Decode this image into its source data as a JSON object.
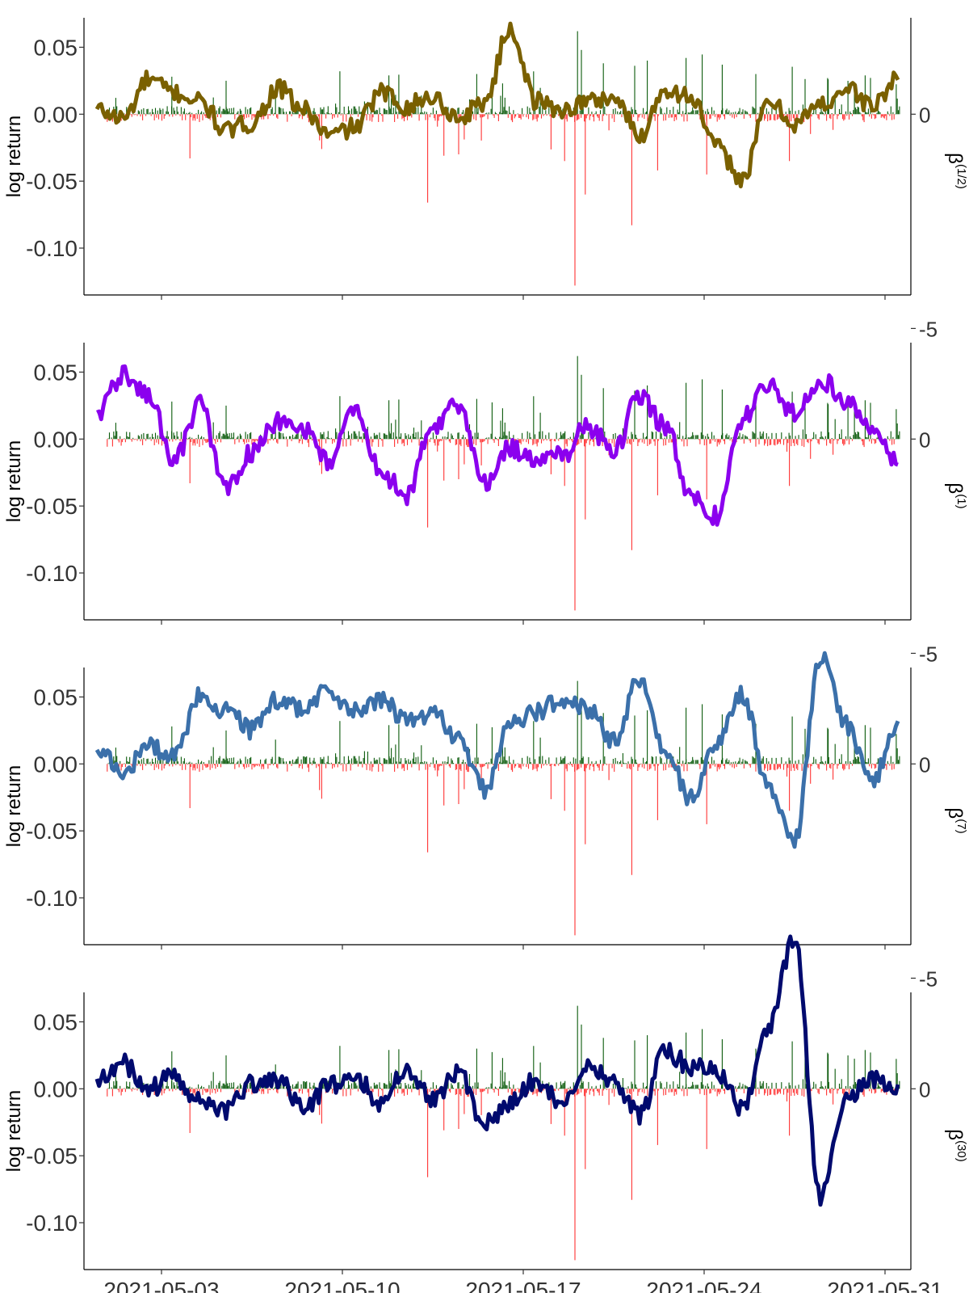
{
  "figure": {
    "left_axis_label": "log return",
    "x_ticks": [
      "2021-05-03",
      "2021-05-10",
      "2021-05-17",
      "2021-05-24",
      "2021-05-31"
    ]
  },
  "chart_data": [
    {
      "type": "bar+line",
      "title": "",
      "xlabel": "",
      "ylabel": "log return",
      "y2label": "β(1/2)",
      "x_range": [
        "2021-04-30",
        "2021-06-01"
      ],
      "ylim": [
        -0.135,
        0.072
      ],
      "y2lim": [
        -8.8,
        4.5
      ],
      "y_ticks": [
        "0.05",
        "0.00",
        "-0.05",
        "-0.10"
      ],
      "y2_ticks": [
        "0",
        "-5"
      ],
      "grid": false,
      "line_color": "#7a6000",
      "up_color": "#0a5a0a",
      "down_color": "#ff3333",
      "series": [
        {
          "name": "β(1/2)",
          "x": [
            "2021-04-30T12:00",
            "2021-05-01T12:00",
            "2021-05-02T12:00",
            "2021-05-03T12:00",
            "2021-05-04T12:00",
            "2021-05-05T12:00",
            "2021-05-06T12:00",
            "2021-05-07T12:00",
            "2021-05-08T12:00",
            "2021-05-09T12:00",
            "2021-05-10T12:00",
            "2021-05-11T12:00",
            "2021-05-12T12:00",
            "2021-05-13T12:00",
            "2021-05-14T12:00",
            "2021-05-15T12:00",
            "2021-05-16T12:00",
            "2021-05-17T12:00",
            "2021-05-18T12:00",
            "2021-05-19T12:00",
            "2021-05-20T12:00",
            "2021-05-21T12:00",
            "2021-05-22T12:00",
            "2021-05-23T12:00",
            "2021-05-24T12:00",
            "2021-05-25T12:00",
            "2021-05-26T12:00",
            "2021-05-27T12:00",
            "2021-05-28T12:00",
            "2021-05-29T12:00",
            "2021-05-30T12:00",
            "2021-05-31T12:00"
          ],
          "values": [
            0.1,
            -0.1,
            0.8,
            0.5,
            0.3,
            -0.4,
            -0.2,
            0.6,
            0.1,
            -0.5,
            -0.3,
            0.5,
            0.2,
            0.4,
            -0.1,
            0.3,
            2.0,
            0.3,
            0.1,
            0.3,
            0.4,
            -0.5,
            0.6,
            0.4,
            -0.8,
            -1.5,
            0.3,
            -0.2,
            0.2,
            0.6,
            0.2,
            0.8
          ]
        }
      ]
    },
    {
      "type": "bar+line",
      "title": "",
      "xlabel": "",
      "ylabel": "log return",
      "y2label": "β(1)",
      "x_range": [
        "2021-04-30",
        "2021-06-01"
      ],
      "ylim": [
        -0.135,
        0.072
      ],
      "y2lim": [
        -8.8,
        4.5
      ],
      "y_ticks": [
        "0.05",
        "0.00",
        "-0.05",
        "-0.10"
      ],
      "y2_ticks": [
        "0",
        "-5"
      ],
      "grid": false,
      "line_color": "#8b00ee",
      "up_color": "#0a5a0a",
      "down_color": "#ff3333",
      "series": [
        {
          "name": "β(1)",
          "x": [
            "2021-04-30T12:00",
            "2021-05-01T12:00",
            "2021-05-02T12:00",
            "2021-05-03T12:00",
            "2021-05-04T12:00",
            "2021-05-05T12:00",
            "2021-05-06T12:00",
            "2021-05-07T12:00",
            "2021-05-08T12:00",
            "2021-05-09T12:00",
            "2021-05-10T12:00",
            "2021-05-11T12:00",
            "2021-05-12T12:00",
            "2021-05-13T12:00",
            "2021-05-14T12:00",
            "2021-05-15T12:00",
            "2021-05-16T12:00",
            "2021-05-17T12:00",
            "2021-05-18T12:00",
            "2021-05-19T12:00",
            "2021-05-20T12:00",
            "2021-05-21T12:00",
            "2021-05-22T12:00",
            "2021-05-23T12:00",
            "2021-05-24T12:00",
            "2021-05-25T12:00",
            "2021-05-26T12:00",
            "2021-05-27T12:00",
            "2021-05-28T12:00",
            "2021-05-29T12:00",
            "2021-05-30T12:00",
            "2021-05-31T12:00"
          ],
          "values": [
            0.6,
            1.5,
            1.0,
            -0.5,
            0.8,
            -1.2,
            -0.3,
            0.4,
            0.2,
            -0.5,
            0.7,
            -0.8,
            -1.3,
            0.3,
            0.8,
            -1.0,
            -0.2,
            -0.5,
            -0.4,
            0.3,
            -0.3,
            1.0,
            0.3,
            -1.4,
            -1.8,
            0.5,
            1.3,
            0.6,
            1.4,
            0.9,
            0.3,
            -0.6
          ]
        }
      ]
    },
    {
      "type": "bar+line",
      "title": "",
      "xlabel": "",
      "ylabel": "log return",
      "y2label": "β(7)",
      "x_range": [
        "2021-04-30",
        "2021-06-01"
      ],
      "ylim": [
        -0.135,
        0.072
      ],
      "y2lim": [
        -8.8,
        4.5
      ],
      "y_ticks": [
        "0.05",
        "0.00",
        "-0.05",
        "-0.10"
      ],
      "y2_ticks": [
        "0",
        "-5"
      ],
      "grid": false,
      "line_color": "#3b70aa",
      "up_color": "#0a5a0a",
      "down_color": "#ff3333",
      "series": [
        {
          "name": "β(7)",
          "x": [
            "2021-04-30T12:00",
            "2021-05-01T12:00",
            "2021-05-02T12:00",
            "2021-05-03T12:00",
            "2021-05-04T12:00",
            "2021-05-05T12:00",
            "2021-05-06T12:00",
            "2021-05-07T12:00",
            "2021-05-08T12:00",
            "2021-05-09T12:00",
            "2021-05-10T12:00",
            "2021-05-11T12:00",
            "2021-05-12T12:00",
            "2021-05-13T12:00",
            "2021-05-14T12:00",
            "2021-05-15T12:00",
            "2021-05-16T12:00",
            "2021-05-17T12:00",
            "2021-05-18T12:00",
            "2021-05-19T12:00",
            "2021-05-20T12:00",
            "2021-05-21T12:00",
            "2021-05-22T12:00",
            "2021-05-23T12:00",
            "2021-05-24T12:00",
            "2021-05-25T12:00",
            "2021-05-26T12:00",
            "2021-05-27T12:00",
            "2021-05-28T12:00",
            "2021-05-29T12:00",
            "2021-05-30T12:00",
            "2021-05-31T12:00"
          ],
          "values": [
            0.3,
            -0.2,
            0.4,
            0.2,
            1.6,
            1.2,
            0.8,
            1.5,
            1.3,
            1.7,
            1.2,
            1.5,
            1.0,
            1.2,
            0.6,
            -0.6,
            0.9,
            1.2,
            1.5,
            1.3,
            0.5,
            2.0,
            0.2,
            -0.8,
            0.5,
            1.6,
            -0.6,
            -1.8,
            2.5,
            0.9,
            -0.4,
            1.0
          ]
        }
      ]
    },
    {
      "type": "bar+line",
      "title": "",
      "xlabel": "",
      "ylabel": "log return",
      "y2label": "β(30)",
      "x_range": [
        "2021-04-30",
        "2021-06-01"
      ],
      "ylim": [
        -0.135,
        0.072
      ],
      "y2lim": [
        -8.8,
        4.5
      ],
      "y_ticks": [
        "0.05",
        "0.00",
        "-0.05",
        "-0.10"
      ],
      "y2_ticks": [
        "0",
        "-5"
      ],
      "grid": false,
      "line_color": "#000a6e",
      "up_color": "#0a5a0a",
      "down_color": "#ff3333",
      "series": [
        {
          "name": "β(30)",
          "x": [
            "2021-04-30T12:00",
            "2021-05-01T12:00",
            "2021-05-02T12:00",
            "2021-05-03T12:00",
            "2021-05-04T12:00",
            "2021-05-05T12:00",
            "2021-05-06T12:00",
            "2021-05-07T12:00",
            "2021-05-08T12:00",
            "2021-05-09T12:00",
            "2021-05-10T12:00",
            "2021-05-11T12:00",
            "2021-05-12T12:00",
            "2021-05-13T12:00",
            "2021-05-14T12:00",
            "2021-05-15T12:00",
            "2021-05-16T12:00",
            "2021-05-17T12:00",
            "2021-05-18T12:00",
            "2021-05-19T12:00",
            "2021-05-20T12:00",
            "2021-05-21T12:00",
            "2021-05-22T12:00",
            "2021-05-23T12:00",
            "2021-05-24T12:00",
            "2021-05-25T12:00",
            "2021-05-26T12:00",
            "2021-05-27T12:00",
            "2021-05-28T12:00",
            "2021-05-29T12:00",
            "2021-05-30T12:00",
            "2021-05-31T12:00"
          ],
          "values": [
            0.2,
            0.6,
            0.0,
            0.3,
            -0.3,
            -0.5,
            0.1,
            0.2,
            -0.5,
            0.1,
            0.3,
            -0.3,
            0.5,
            -0.2,
            0.4,
            -0.8,
            -0.3,
            0.2,
            -0.4,
            0.6,
            0.2,
            -0.6,
            0.9,
            0.5,
            0.4,
            -0.5,
            1.5,
            3.5,
            -2.5,
            -0.2,
            0.2,
            0.1
          ]
        }
      ]
    }
  ]
}
